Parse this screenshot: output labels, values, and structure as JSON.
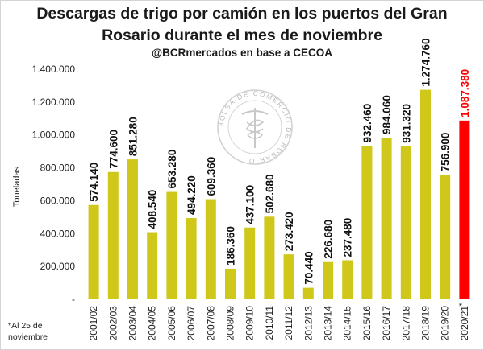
{
  "chart_data": {
    "type": "bar",
    "title_line1": "Descargas de trigo por camión en los puertos del Gran",
    "title_line2": "Rosario durante el mes de noviembre",
    "subtitle": "@BCRmercados en base a CECOA",
    "ylabel": "Toneladas",
    "xlabel": "",
    "ylim": [
      0,
      1400000
    ],
    "yticks": [
      0,
      200000,
      400000,
      600000,
      800000,
      1000000,
      1200000,
      1400000
    ],
    "ytick_labels": [
      "-",
      "200.000",
      "400.000",
      "600.000",
      "800.000",
      "1.000.000",
      "1.200.000",
      "1.400.000"
    ],
    "categories": [
      "2001/02",
      "2002/03",
      "2003/04",
      "2004/05",
      "2005/06",
      "2006/07",
      "2007/08",
      "2008/09",
      "2009/10",
      "2010/11",
      "2011/12",
      "2012/13",
      "2013/14",
      "2014/15",
      "2015/16",
      "2016/17",
      "2017/18",
      "2018/19",
      "2019/20",
      "2020/21"
    ],
    "category_marks": [
      "",
      "",
      "",
      "",
      "",
      "",
      "",
      "",
      "",
      "",
      "",
      "",
      "",
      "",
      "",
      "",
      "",
      "",
      "",
      "*"
    ],
    "values": [
      574140,
      774600,
      851280,
      408540,
      653280,
      494220,
      609360,
      186360,
      437100,
      502680,
      273420,
      70440,
      226680,
      237480,
      932460,
      984060,
      931320,
      1274760,
      756900,
      1087380
    ],
    "value_labels": [
      "574.140",
      "774.600",
      "851.280",
      "408.540",
      "653.280",
      "494.220",
      "609.360",
      "186.360",
      "437.100",
      "502.680",
      "273.420",
      "70.440",
      "226.680",
      "237.480",
      "932.460",
      "984.060",
      "931.320",
      "1.274.760",
      "756.900",
      "1.087.380"
    ],
    "highlight": [
      false,
      false,
      false,
      false,
      false,
      false,
      false,
      false,
      false,
      false,
      false,
      false,
      false,
      false,
      false,
      false,
      false,
      false,
      false,
      true
    ],
    "colors": {
      "bar": "#cfc71a",
      "highlight": "#ff0000",
      "label": "#111111",
      "highlight_label": "#ff0000",
      "axis": "#222222"
    },
    "footnote": "*Al 25 de noviembre",
    "watermark": "BOLSA DE COMERCIO DE ROSARIO",
    "grid": false
  }
}
